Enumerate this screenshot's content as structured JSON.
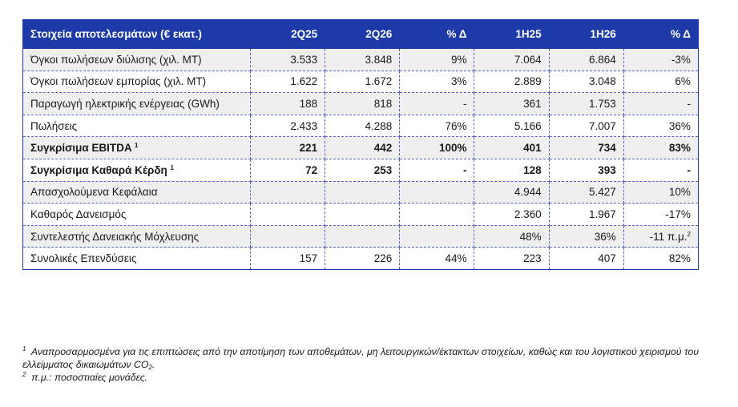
{
  "table": {
    "headers": [
      "Στοιχεία αποτελεσμάτων (€ εκατ.)",
      "2Q25",
      "2Q26",
      "% Δ",
      "1H25",
      "1H26",
      "% Δ"
    ],
    "rows": [
      {
        "label": "Όγκοι πωλήσεων διύλισης (χιλ. ΜΤ)",
        "sup": "",
        "values": [
          "3.533",
          "3.848",
          "9%",
          "7.064",
          "6.864",
          "-3%"
        ],
        "style": "grey"
      },
      {
        "label": "Όγκοι πωλήσεων εμπορίας (χιλ. ΜΤ)",
        "sup": "",
        "values": [
          "1.622",
          "1.672",
          "3%",
          "2.889",
          "3.048",
          "6%"
        ],
        "style": ""
      },
      {
        "label": "Παραγωγή ηλεκτρικής ενέργειας (GWh)",
        "sup": "",
        "values": [
          "188",
          "818",
          "-",
          "361",
          "1.753",
          "-"
        ],
        "style": "grey"
      },
      {
        "label": "Πωλήσεις",
        "sup": "",
        "values": [
          "2.433",
          "4.288",
          "76%",
          "5.166",
          "7.007",
          "36%"
        ],
        "style": ""
      },
      {
        "label": "Συγκρίσιμα EBITDA",
        "sup": "1",
        "values": [
          "221",
          "442",
          "100%",
          "401",
          "734",
          "83%"
        ],
        "style": "grey bold"
      },
      {
        "label": "Συγκρίσιμα Καθαρά Κέρδη",
        "sup": "1",
        "values": [
          "72",
          "253",
          "-",
          "128",
          "393",
          "-"
        ],
        "style": "bold"
      },
      {
        "label": "Απασχολούμενα Κεφάλαια",
        "sup": "",
        "values": [
          "",
          "",
          "",
          "4.944",
          "5.427",
          "10%"
        ],
        "style": "grey"
      },
      {
        "label": "Καθαρός Δανεισμός",
        "sup": "",
        "values": [
          "",
          "",
          "",
          "2.360",
          "1.967",
          "-17%"
        ],
        "style": ""
      },
      {
        "label": "Συντελεστής Δανειακής Μόχλευσης",
        "sup": "",
        "values": [
          "",
          "",
          "",
          "48%",
          "36%",
          "-11 π.μ."
        ],
        "valueSup": "2",
        "style": "grey"
      },
      {
        "label": "Συνολικές Επενδύσεις",
        "sup": "",
        "values": [
          "157",
          "226",
          "44%",
          "223",
          "407",
          "82%"
        ],
        "style": "last"
      }
    ]
  },
  "notes": {
    "note1_marker": "1",
    "note1_text": "Αναπροσαρμοσμένα για τις επιπτώσεις από την αποτίμηση των αποθεμάτων, μη λειτουργικών/έκτακτων στοιχείων, καθώς και του λογιστικού χειρισμού του ελλείμματος δικαιωμάτων CO",
    "note1_sub": "2",
    "note1_end": ".",
    "note2_marker": "2",
    "note2_text": "π.μ.: ποσοστιαίες μονάδες."
  }
}
